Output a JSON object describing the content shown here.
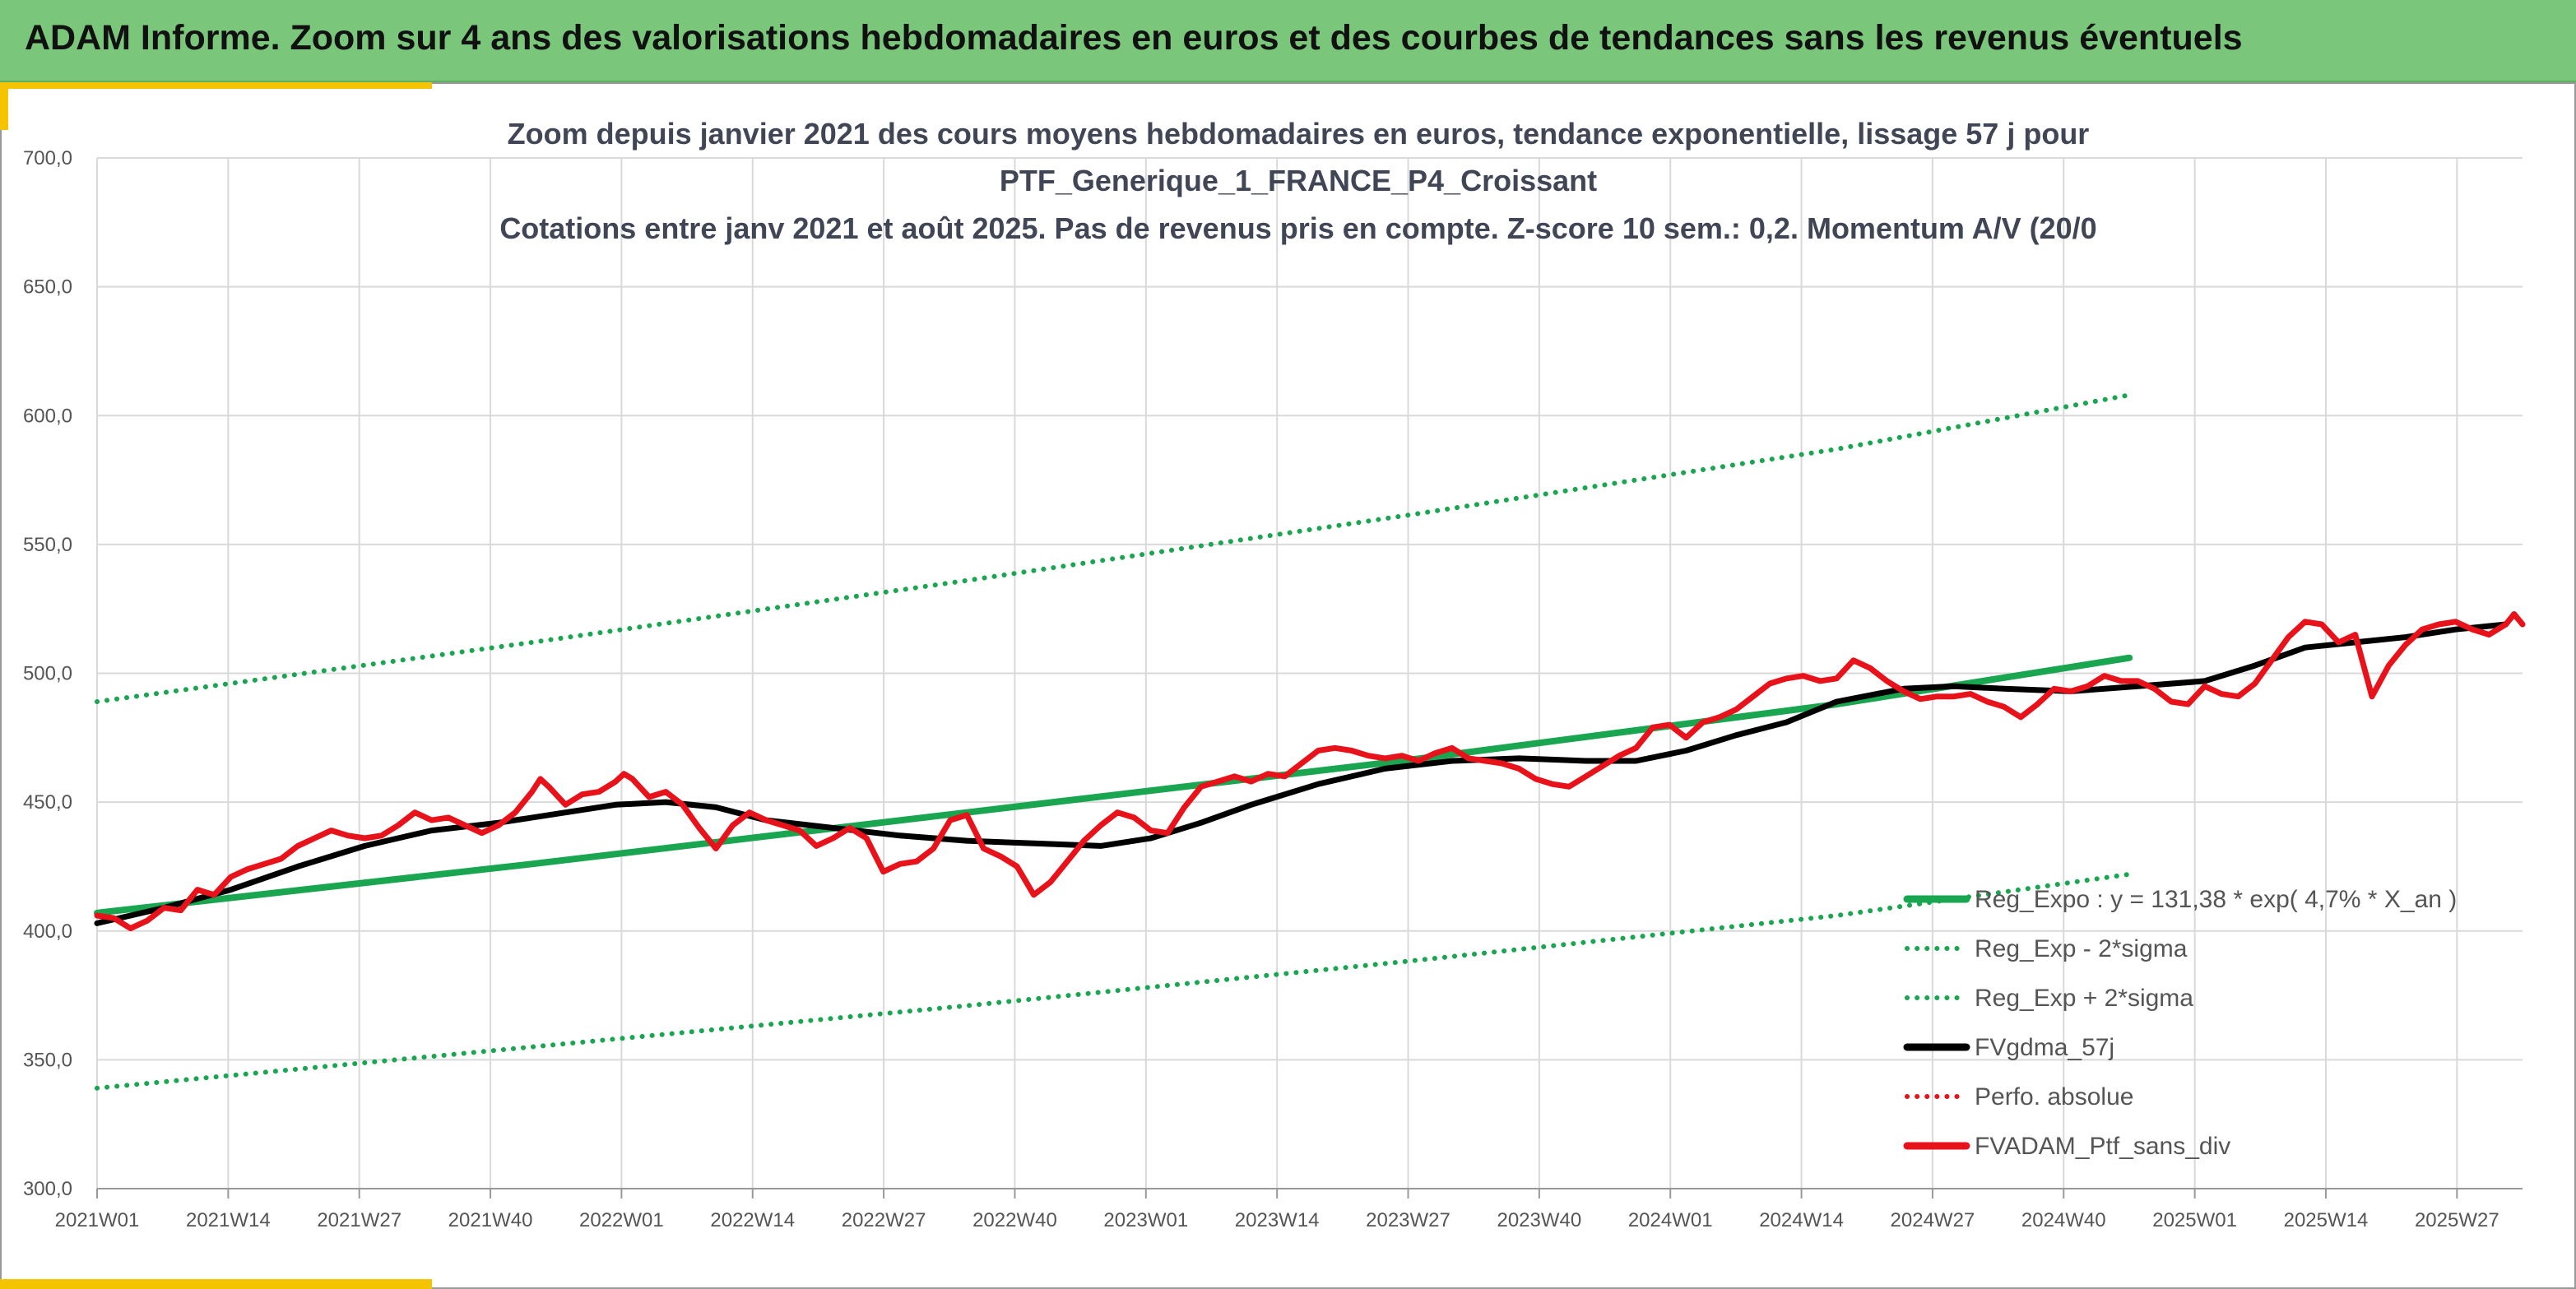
{
  "banner": {
    "title": "ADAM Informe. Zoom sur 4 ans des valorisations hebdomadaires en euros et des courbes de tendances sans les revenus éventuels"
  },
  "colors": {
    "banner": "#7ac77b",
    "accent": "#f5c400",
    "trend_green": "#1aa550",
    "smooth_black": "#000000",
    "perf_red": "#e8121b",
    "grid": "#d9d9d9"
  },
  "chart_data": {
    "type": "line",
    "title_lines": [
      "Zoom depuis janvier 2021 des cours moyens hebdomadaires en euros, tendance exponentielle, lissage 57 j pour",
      "PTF_Generique_1_FRANCE_P4_Croissant",
      "Cotations entre janv 2021 et août 2025. Pas de revenus pris en compte. Z-score 10 sem.: 0,2. Momentum A/V (20/0"
    ],
    "ylim": [
      300,
      700
    ],
    "y_ticks": [
      "300,0",
      "350,0",
      "400,0",
      "450,0",
      "500,0",
      "550,0",
      "600,0",
      "650,0",
      "700,0"
    ],
    "x_ticks": [
      "2021W01",
      "2021W14",
      "2021W27",
      "2021W40",
      "2022W01",
      "2022W14",
      "2022W27",
      "2022W40",
      "2023W01",
      "2023W14",
      "2023W27",
      "2023W40",
      "2024W01",
      "2024W14",
      "2024W27",
      "2024W40",
      "2025W01",
      "2025W14",
      "2025W27"
    ],
    "x_range_weeks": [
      0,
      243
    ],
    "grid": "vertical and horizontal",
    "legend_position": "bottom-right, inside plot",
    "series": [
      {
        "name": "Reg_Expo : y = 131,38 * exp( 4,7% * X_an )",
        "style": "solid",
        "color": "#1aa550",
        "points": [
          [
            0,
            407
          ],
          [
            52,
            426
          ],
          [
            104,
            446
          ],
          [
            156,
            466
          ],
          [
            208,
            488
          ],
          [
            243,
            506
          ]
        ]
      },
      {
        "name": "Reg_Exp - 2*sigma",
        "style": "dotted",
        "color": "#1aa550",
        "points": [
          [
            0,
            339
          ],
          [
            52,
            355
          ],
          [
            104,
            371
          ],
          [
            156,
            388
          ],
          [
            208,
            406
          ],
          [
            243,
            422
          ]
        ]
      },
      {
        "name": "Reg_Exp + 2*sigma",
        "style": "dotted",
        "color": "#1aa550",
        "points": [
          [
            0,
            489
          ],
          [
            52,
            512
          ],
          [
            104,
            536
          ],
          [
            156,
            561
          ],
          [
            208,
            587
          ],
          [
            243,
            608
          ]
        ]
      },
      {
        "name": "FVgdma_57j",
        "style": "solid",
        "color": "#000000",
        "points": [
          [
            0,
            403
          ],
          [
            8,
            409
          ],
          [
            16,
            416
          ],
          [
            24,
            425
          ],
          [
            32,
            433
          ],
          [
            40,
            439
          ],
          [
            48,
            442
          ],
          [
            56,
            446
          ],
          [
            62,
            449
          ],
          [
            68,
            450
          ],
          [
            74,
            448
          ],
          [
            80,
            443
          ],
          [
            88,
            440
          ],
          [
            96,
            437
          ],
          [
            104,
            435
          ],
          [
            112,
            434
          ],
          [
            120,
            433
          ],
          [
            126,
            436
          ],
          [
            132,
            442
          ],
          [
            138,
            449
          ],
          [
            146,
            457
          ],
          [
            154,
            463
          ],
          [
            162,
            466
          ],
          [
            170,
            467
          ],
          [
            178,
            466
          ],
          [
            184,
            466
          ],
          [
            190,
            470
          ],
          [
            196,
            476
          ],
          [
            202,
            481
          ],
          [
            208,
            489
          ],
          [
            216,
            494
          ],
          [
            222,
            495
          ],
          [
            228,
            494
          ],
          [
            236,
            493
          ],
          [
            244,
            495
          ],
          [
            252,
            497
          ],
          [
            258,
            503
          ],
          [
            264,
            510
          ],
          [
            270,
            512
          ],
          [
            276,
            514
          ],
          [
            282,
            517
          ],
          [
            288,
            519
          ]
        ]
      },
      {
        "name": "Perfo. absolue",
        "style": "dotted",
        "color": "#e8121b",
        "points": []
      },
      {
        "name": "FVADAM_Ptf_sans_div",
        "style": "solid",
        "color": "#e8121b",
        "points": [
          [
            0,
            406
          ],
          [
            2,
            405
          ],
          [
            4,
            401
          ],
          [
            6,
            404
          ],
          [
            8,
            409
          ],
          [
            10,
            408
          ],
          [
            12,
            416
          ],
          [
            14,
            414
          ],
          [
            16,
            421
          ],
          [
            18,
            424
          ],
          [
            20,
            426
          ],
          [
            22,
            428
          ],
          [
            24,
            433
          ],
          [
            26,
            436
          ],
          [
            28,
            439
          ],
          [
            30,
            437
          ],
          [
            32,
            436
          ],
          [
            34,
            437
          ],
          [
            36,
            441
          ],
          [
            38,
            446
          ],
          [
            40,
            443
          ],
          [
            42,
            444
          ],
          [
            44,
            441
          ],
          [
            46,
            438
          ],
          [
            48,
            441
          ],
          [
            50,
            446
          ],
          [
            52,
            454
          ],
          [
            53,
            459
          ],
          [
            54,
            456
          ],
          [
            56,
            449
          ],
          [
            58,
            453
          ],
          [
            60,
            454
          ],
          [
            62,
            458
          ],
          [
            63,
            461
          ],
          [
            64,
            459
          ],
          [
            66,
            452
          ],
          [
            68,
            454
          ],
          [
            70,
            449
          ],
          [
            72,
            440
          ],
          [
            74,
            432
          ],
          [
            76,
            441
          ],
          [
            78,
            446
          ],
          [
            80,
            443
          ],
          [
            82,
            441
          ],
          [
            84,
            439
          ],
          [
            86,
            433
          ],
          [
            88,
            436
          ],
          [
            90,
            440
          ],
          [
            92,
            436
          ],
          [
            94,
            423
          ],
          [
            96,
            426
          ],
          [
            98,
            427
          ],
          [
            100,
            432
          ],
          [
            102,
            443
          ],
          [
            104,
            445
          ],
          [
            106,
            432
          ],
          [
            108,
            429
          ],
          [
            110,
            425
          ],
          [
            112,
            414
          ],
          [
            114,
            419
          ],
          [
            116,
            427
          ],
          [
            118,
            435
          ],
          [
            120,
            441
          ],
          [
            122,
            446
          ],
          [
            124,
            444
          ],
          [
            126,
            439
          ],
          [
            128,
            438
          ],
          [
            130,
            448
          ],
          [
            132,
            456
          ],
          [
            134,
            458
          ],
          [
            136,
            460
          ],
          [
            138,
            458
          ],
          [
            140,
            461
          ],
          [
            142,
            460
          ],
          [
            144,
            465
          ],
          [
            146,
            470
          ],
          [
            148,
            471
          ],
          [
            150,
            470
          ],
          [
            152,
            468
          ],
          [
            154,
            467
          ],
          [
            156,
            468
          ],
          [
            158,
            466
          ],
          [
            160,
            469
          ],
          [
            162,
            471
          ],
          [
            164,
            467
          ],
          [
            166,
            466
          ],
          [
            168,
            465
          ],
          [
            170,
            463
          ],
          [
            172,
            459
          ],
          [
            174,
            457
          ],
          [
            176,
            456
          ],
          [
            178,
            460
          ],
          [
            180,
            464
          ],
          [
            182,
            468
          ],
          [
            184,
            471
          ],
          [
            186,
            479
          ],
          [
            188,
            480
          ],
          [
            190,
            475
          ],
          [
            192,
            481
          ],
          [
            194,
            483
          ],
          [
            196,
            486
          ],
          [
            198,
            491
          ],
          [
            200,
            496
          ],
          [
            202,
            498
          ],
          [
            204,
            499
          ],
          [
            206,
            497
          ],
          [
            208,
            498
          ],
          [
            210,
            505
          ],
          [
            212,
            502
          ],
          [
            214,
            497
          ],
          [
            216,
            493
          ],
          [
            218,
            490
          ],
          [
            220,
            491
          ],
          [
            222,
            491
          ],
          [
            224,
            492
          ],
          [
            226,
            489
          ],
          [
            228,
            487
          ],
          [
            230,
            483
          ],
          [
            232,
            488
          ],
          [
            234,
            494
          ],
          [
            236,
            493
          ],
          [
            238,
            495
          ],
          [
            240,
            499
          ],
          [
            242,
            497
          ],
          [
            244,
            497
          ],
          [
            246,
            494
          ],
          [
            248,
            489
          ],
          [
            250,
            488
          ],
          [
            252,
            495
          ],
          [
            254,
            492
          ],
          [
            256,
            491
          ],
          [
            258,
            496
          ],
          [
            260,
            505
          ],
          [
            262,
            514
          ],
          [
            264,
            520
          ],
          [
            266,
            519
          ],
          [
            268,
            512
          ],
          [
            270,
            515
          ],
          [
            272,
            491
          ],
          [
            274,
            503
          ],
          [
            276,
            511
          ],
          [
            278,
            517
          ],
          [
            280,
            519
          ],
          [
            282,
            520
          ],
          [
            284,
            517
          ],
          [
            286,
            515
          ],
          [
            288,
            519
          ],
          [
            289,
            523
          ],
          [
            290,
            519
          ]
        ]
      }
    ]
  }
}
